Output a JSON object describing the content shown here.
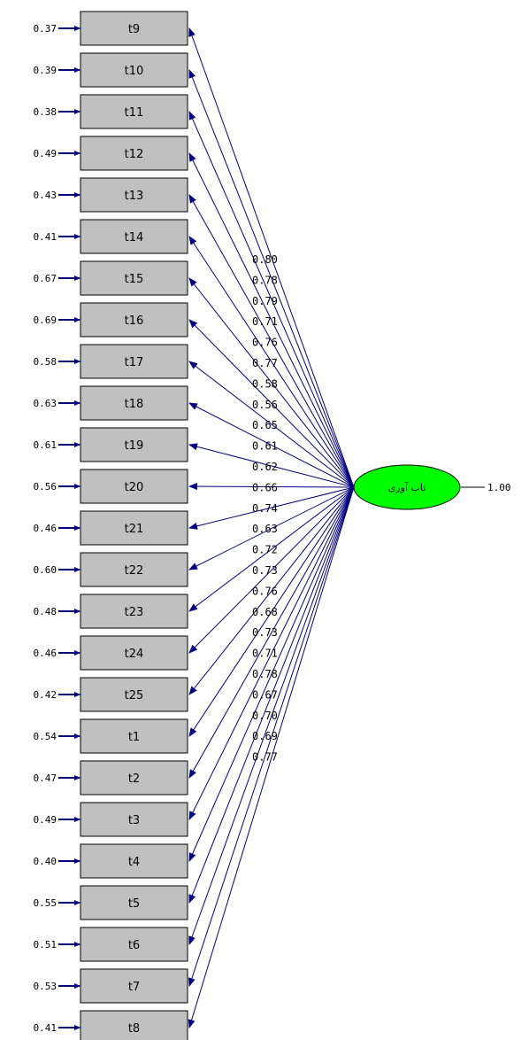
{
  "diagram": {
    "factor": {
      "label": "تاب آوری",
      "variance_label": "1.00",
      "fill": "#00ff00"
    },
    "colors": {
      "arrow": "#000080",
      "box": "#c0c0c0"
    },
    "indicators": [
      {
        "name": "t9",
        "error": "0.37",
        "loading": "0.80"
      },
      {
        "name": "t10",
        "error": "0.39",
        "loading": "0.78"
      },
      {
        "name": "t11",
        "error": "0.38",
        "loading": "0.79"
      },
      {
        "name": "t12",
        "error": "0.49",
        "loading": "0.71"
      },
      {
        "name": "t13",
        "error": "0.43",
        "loading": "0.76"
      },
      {
        "name": "t14",
        "error": "0.41",
        "loading": "0.77"
      },
      {
        "name": "t15",
        "error": "0.67",
        "loading": "0.58"
      },
      {
        "name": "t16",
        "error": "0.69",
        "loading": "0.56"
      },
      {
        "name": "t17",
        "error": "0.58",
        "loading": "0.65"
      },
      {
        "name": "t18",
        "error": "0.63",
        "loading": "0.61"
      },
      {
        "name": "t19",
        "error": "0.61",
        "loading": "0.62"
      },
      {
        "name": "t20",
        "error": "0.56",
        "loading": "0.66"
      },
      {
        "name": "t21",
        "error": "0.46",
        "loading": "0.74"
      },
      {
        "name": "t22",
        "error": "0.60",
        "loading": "0.63"
      },
      {
        "name": "t23",
        "error": "0.48",
        "loading": "0.72"
      },
      {
        "name": "t24",
        "error": "0.46",
        "loading": "0.73"
      },
      {
        "name": "t25",
        "error": "0.42",
        "loading": "0.76"
      },
      {
        "name": "t1",
        "error": "0.54",
        "loading": "0.68"
      },
      {
        "name": "t2",
        "error": "0.47",
        "loading": "0.73"
      },
      {
        "name": "t3",
        "error": "0.49",
        "loading": "0.71"
      },
      {
        "name": "t4",
        "error": "0.40",
        "loading": "0.78"
      },
      {
        "name": "t5",
        "error": "0.55",
        "loading": "0.67"
      },
      {
        "name": "t6",
        "error": "0.51",
        "loading": "0.70"
      },
      {
        "name": "t7",
        "error": "0.53",
        "loading": "0.69"
      },
      {
        "name": "t8",
        "error": "0.41",
        "loading": "0.77"
      }
    ]
  }
}
